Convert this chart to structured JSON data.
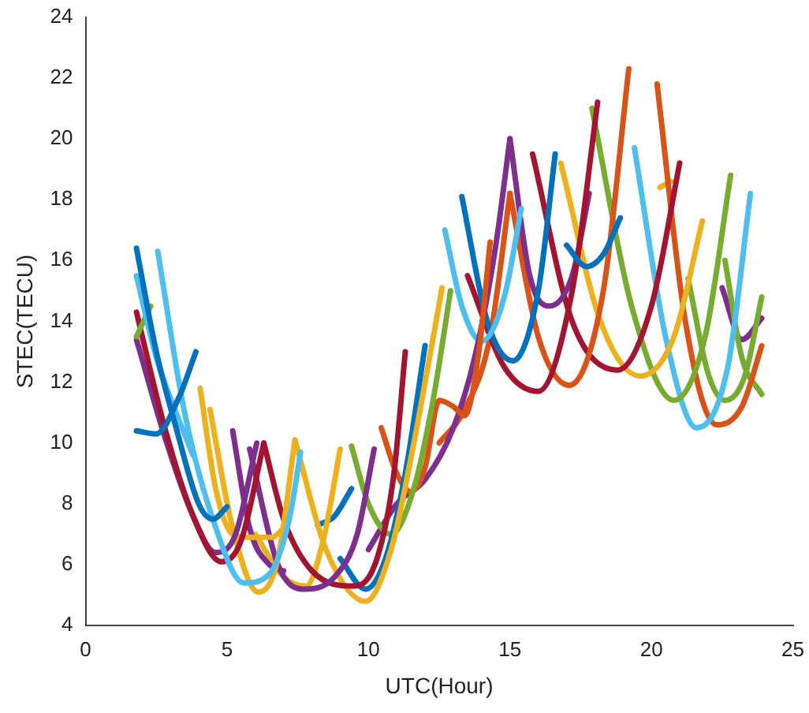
{
  "chart_data": {
    "type": "line",
    "xlabel": "UTC(Hour)",
    "ylabel": "STEC(TECU)",
    "xlim": [
      0,
      25
    ],
    "ylim": [
      4,
      24
    ],
    "xticks": [
      0,
      5,
      10,
      15,
      20,
      25
    ],
    "yticks": [
      4,
      6,
      8,
      10,
      12,
      14,
      16,
      18,
      20,
      22,
      24
    ],
    "grid": false,
    "legend": false,
    "marker": "none",
    "line_style": "solid",
    "series": [
      {
        "color": "#0072bd",
        "x": [
          1.8,
          2.5,
          3.2,
          4.0,
          4.5,
          5.0
        ],
        "values": [
          16.4,
          13.0,
          10.5,
          8.0,
          7.5,
          7.9
        ]
      },
      {
        "color": "#0072bd",
        "x": [
          1.8,
          2.5,
          3.3,
          3.9
        ],
        "values": [
          10.4,
          10.3,
          11.5,
          13.0
        ]
      },
      {
        "color": "#4dbeee",
        "x": [
          1.8,
          2.5,
          3.2,
          3.8
        ],
        "values": [
          15.5,
          12.8,
          11.0,
          9.6
        ]
      },
      {
        "color": "#4dbeee",
        "x": [
          2.55,
          3.5,
          4.5,
          5.6,
          6.5,
          7.2,
          7.6
        ],
        "values": [
          16.3,
          11.0,
          7.5,
          5.4,
          5.7,
          7.5,
          9.7
        ]
      },
      {
        "color": "#77ac30",
        "x": [
          1.8,
          2.3
        ],
        "values": [
          13.5,
          14.5
        ]
      },
      {
        "color": "#a2142f",
        "x": [
          1.8,
          2.8,
          3.8,
          4.8,
          5.5,
          6.3
        ],
        "values": [
          14.3,
          10.5,
          7.6,
          6.1,
          6.8,
          10.0
        ]
      },
      {
        "color": "#7e2f8e",
        "x": [
          1.8,
          2.8,
          3.8,
          4.6,
          5.3,
          6.05
        ],
        "values": [
          13.4,
          10.2,
          7.6,
          6.4,
          7.0,
          10.0
        ]
      },
      {
        "color": "#edb120",
        "x": [
          4.05,
          4.6,
          5.2,
          5.8,
          6.6,
          7.0
        ],
        "values": [
          11.8,
          8.5,
          7.0,
          6.9,
          6.9,
          7.2
        ]
      },
      {
        "color": "#edb120",
        "x": [
          4.4,
          5.2,
          6.1,
          6.8,
          7.4
        ],
        "values": [
          11.1,
          7.2,
          5.1,
          6.2,
          10.1
        ]
      },
      {
        "color": "#7e2f8e",
        "x": [
          5.2,
          5.8,
          6.5,
          7.0
        ],
        "values": [
          10.4,
          7.2,
          6.0,
          5.8
        ]
      },
      {
        "color": "#7e2f8e",
        "x": [
          5.8,
          6.8,
          7.7,
          8.8,
          9.6,
          10.2
        ],
        "values": [
          9.8,
          6.0,
          5.2,
          5.6,
          7.0,
          9.8
        ]
      },
      {
        "color": "#a2142f",
        "x": [
          6.3,
          7.0,
          8.0,
          9.5,
          10.3,
          10.9,
          11.3
        ],
        "values": [
          10.0,
          7.5,
          5.8,
          5.3,
          6.2,
          9.0,
          13.0
        ]
      },
      {
        "color": "#edb120",
        "x": [
          7.4,
          8.5,
          9.9,
          10.8,
          11.5,
          12.1,
          12.6
        ],
        "values": [
          10.1,
          6.5,
          4.8,
          6.5,
          9.5,
          12.5,
          15.1
        ]
      },
      {
        "color": "#edb120",
        "x": [
          6.0,
          7.0,
          7.8,
          8.4,
          9.0
        ],
        "values": [
          7.0,
          5.6,
          5.3,
          6.8,
          9.8
        ]
      },
      {
        "color": "#0072bd",
        "x": [
          8.2,
          8.8,
          9.4
        ],
        "values": [
          7.3,
          7.6,
          8.5
        ]
      },
      {
        "color": "#0072bd",
        "x": [
          9.0,
          9.9,
          10.6,
          11.3,
          12.0
        ],
        "values": [
          6.2,
          5.2,
          6.2,
          9.0,
          13.2
        ]
      },
      {
        "color": "#77ac30",
        "x": [
          9.4,
          10.0,
          10.8,
          11.6,
          12.3,
          12.9
        ],
        "values": [
          9.9,
          8.0,
          7.0,
          8.5,
          11.5,
          15.0
        ]
      },
      {
        "color": "#d95319",
        "x": [
          10.45,
          11.0,
          11.5,
          12.0,
          12.5,
          13.0,
          13.4,
          13.9,
          14.3
        ],
        "values": [
          10.5,
          9.0,
          8.4,
          9.2,
          11.4,
          11.2,
          10.9,
          13.0,
          16.6
        ]
      },
      {
        "color": "#7e2f8e",
        "x": [
          10.0,
          11.0,
          12.0,
          13.0,
          13.8,
          14.5,
          15.0
        ],
        "values": [
          6.5,
          8.0,
          8.8,
          10.5,
          13.0,
          16.5,
          20.0
        ]
      },
      {
        "color": "#4dbeee",
        "x": [
          12.7,
          13.3,
          14.0,
          14.8,
          15.4
        ],
        "values": [
          17.0,
          14.5,
          13.35,
          14.8,
          17.7
        ]
      },
      {
        "color": "#0072bd",
        "x": [
          13.3,
          14.2,
          15.1,
          16.0,
          16.6
        ],
        "values": [
          18.1,
          14.0,
          12.7,
          15.0,
          19.5
        ]
      },
      {
        "color": "#0072bd",
        "x": [
          17.0,
          17.7,
          18.3,
          18.9
        ],
        "values": [
          16.5,
          15.8,
          16.2,
          17.4
        ]
      },
      {
        "color": "#a2142f",
        "x": [
          13.5,
          14.8,
          16.0,
          17.2,
          18.1
        ],
        "values": [
          15.5,
          12.5,
          11.7,
          15.0,
          21.2
        ]
      },
      {
        "color": "#7e2f8e",
        "x": [
          15.0,
          15.7,
          16.4,
          17.2,
          17.8
        ],
        "values": [
          20.0,
          15.5,
          14.5,
          15.5,
          18.2
        ]
      },
      {
        "color": "#d95319",
        "x": [
          12.5,
          13.4,
          14.3,
          15.0
        ],
        "values": [
          10.0,
          11.1,
          13.5,
          18.2
        ]
      },
      {
        "color": "#d95319",
        "x": [
          15.0,
          16.0,
          17.1,
          18.3,
          19.2
        ],
        "values": [
          18.2,
          13.5,
          11.9,
          15.0,
          22.3
        ]
      },
      {
        "color": "#a2142f",
        "x": [
          15.8,
          17.2,
          18.8,
          20.0,
          21.0
        ],
        "values": [
          19.5,
          14.0,
          12.4,
          14.5,
          19.2
        ]
      },
      {
        "color": "#edb120",
        "x": [
          16.8,
          18.2,
          19.6,
          20.8,
          21.8
        ],
        "values": [
          19.2,
          14.0,
          12.2,
          13.5,
          17.3
        ]
      },
      {
        "color": "#77ac30",
        "x": [
          17.9,
          19.3,
          20.8,
          21.9,
          22.8
        ],
        "values": [
          21.0,
          14.5,
          11.4,
          13.5,
          18.8
        ]
      },
      {
        "color": "#4dbeee",
        "x": [
          19.4,
          20.5,
          21.6,
          22.7,
          23.5
        ],
        "values": [
          19.7,
          13.5,
          10.5,
          12.5,
          18.2
        ]
      },
      {
        "color": "#d95319",
        "x": [
          20.2,
          21.2,
          22.3,
          23.2,
          23.9
        ],
        "values": [
          21.8,
          14.0,
          10.6,
          11.2,
          13.2
        ]
      },
      {
        "color": "#77ac30",
        "x": [
          21.3,
          22.0,
          22.6,
          23.3,
          23.9
        ],
        "values": [
          15.4,
          12.3,
          11.4,
          12.2,
          14.8
        ]
      },
      {
        "color": "#77ac30",
        "x": [
          22.6,
          23.2,
          23.9
        ],
        "values": [
          16.0,
          12.8,
          11.6
        ]
      },
      {
        "color": "#7e2f8e",
        "x": [
          22.5,
          23.2,
          23.9
        ],
        "values": [
          15.1,
          13.4,
          14.1
        ]
      },
      {
        "color": "#edb120",
        "x": [
          20.3,
          20.7
        ],
        "values": [
          18.4,
          18.6
        ]
      }
    ]
  }
}
